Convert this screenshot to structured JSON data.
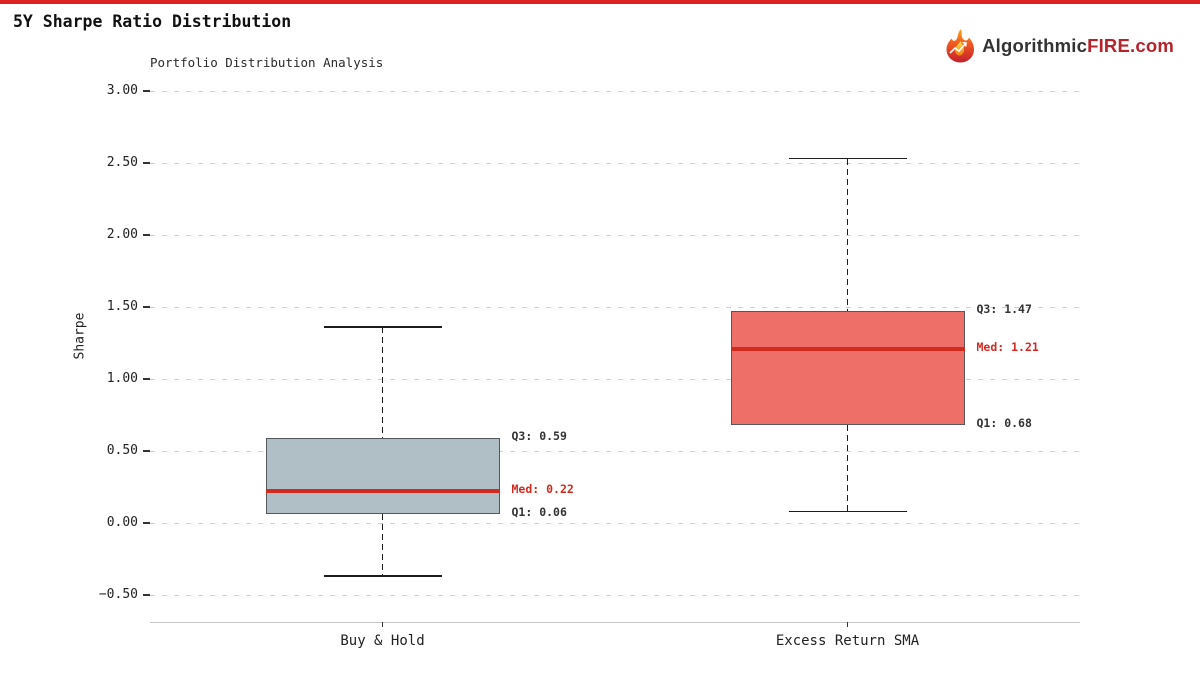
{
  "window": {
    "title": "5Y Sharpe Ratio Distribution"
  },
  "accent_bar_color": "#dd2222",
  "brand": {
    "name_dark": "Algorithmic",
    "name_accent": "FIRE.com",
    "accent_color": "#b5232b",
    "icon": "flame-icon"
  },
  "chart_data": {
    "type": "boxplot",
    "title": "Portfolio Distribution Analysis",
    "ylabel": "Sharpe",
    "ylim": [
      -0.69,
      3.08
    ],
    "yticks": [
      3.0,
      2.5,
      2.0,
      1.5,
      1.0,
      0.5,
      0.0,
      -0.5
    ],
    "ytick_labels": [
      "3.00",
      "2.50",
      "2.00",
      "1.50",
      "1.00",
      "0.50",
      "0.00",
      "−0.50"
    ],
    "grid": "horizontal-dashed",
    "legend": "none",
    "categories": [
      "Buy & Hold",
      "Excess Return SMA"
    ],
    "series": [
      {
        "name": "Buy & Hold",
        "q1": 0.06,
        "median": 0.22,
        "q3": 0.59,
        "whisker_low": -0.37,
        "whisker_high": 1.36,
        "box_fill": "#b0bec5",
        "labels": {
          "q3": "Q3: 0.59",
          "med": "Med: 0.22",
          "q1": "Q1: 0.06"
        }
      },
      {
        "name": "Excess Return SMA",
        "q1": 0.68,
        "median": 1.21,
        "q3": 1.47,
        "whisker_low": 0.08,
        "whisker_high": 2.53,
        "box_fill": "#ed6f67",
        "labels": {
          "q3": "Q3: 1.47",
          "med": "Med: 1.21",
          "q1": "Q1: 0.68"
        }
      }
    ],
    "median_color": "#d32a20",
    "annotation_color": "#333333"
  }
}
